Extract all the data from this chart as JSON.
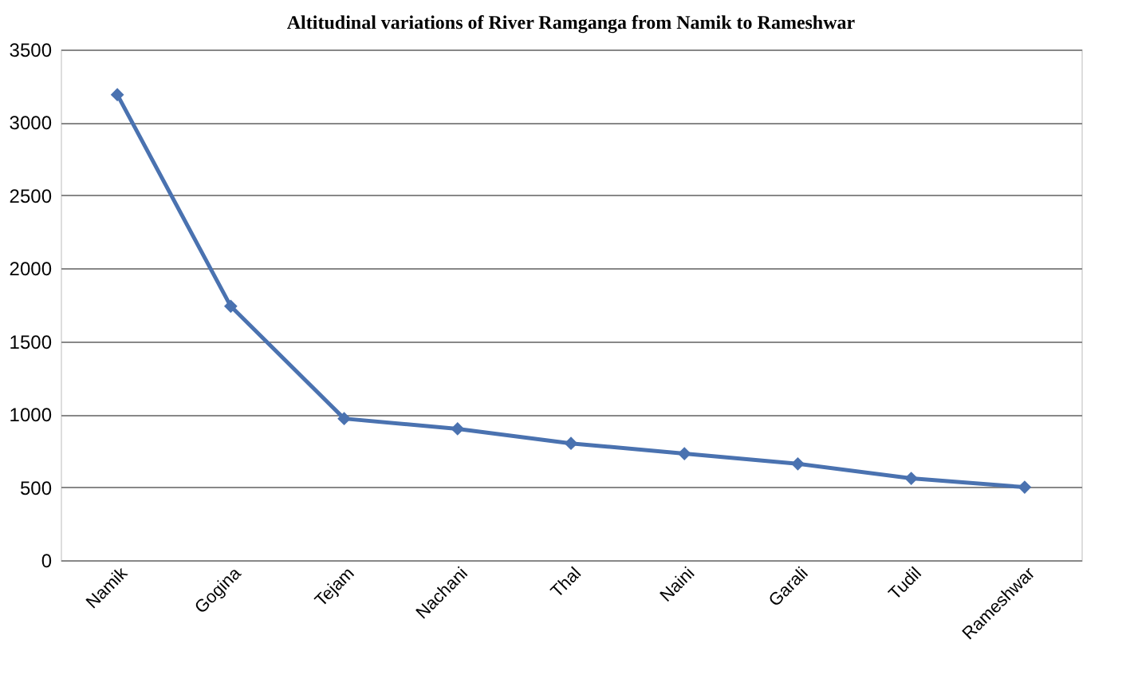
{
  "chart_data": {
    "type": "line",
    "title": "Altitudinal variations of River Ramganga from Namik to Rameshwar",
    "categories": [
      "Namik",
      "Gogina",
      "Tejam",
      "Nachani",
      "Thal",
      "Naini",
      "Garali",
      "Tudil",
      "Rameshwar"
    ],
    "series": [
      {
        "color": "#4a72b0",
        "values": [
          3190,
          1740,
          970,
          900,
          800,
          730,
          660,
          560,
          500
        ]
      }
    ],
    "ylim": [
      0,
      3500
    ],
    "yticks": [
      0,
      500,
      1000,
      1500,
      2000,
      2500,
      3000,
      3500
    ],
    "grid": "y",
    "marker": "diamond",
    "line_style": "solid"
  }
}
